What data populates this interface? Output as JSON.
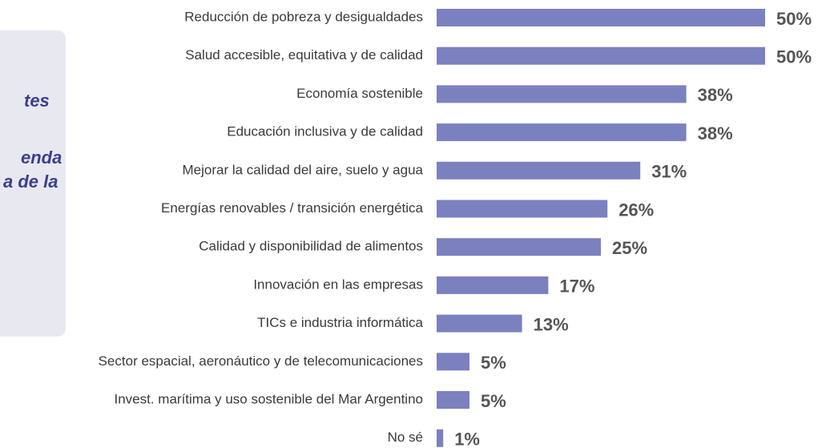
{
  "side_panel": {
    "fragments": [
      "tes",
      "enda",
      "a de la"
    ]
  },
  "chart_data": {
    "type": "bar",
    "orientation": "horizontal",
    "color": "#7b80bf",
    "categories": [
      "Reducción de pobreza y desigualdades",
      "Salud accesible, equitativa y de calidad",
      "Economía sostenible",
      "Educación inclusiva y de calidad",
      "Mejorar la calidad del aire, suelo y agua",
      "Energías renovables / transición energética",
      "Calidad y disponibilidad de alimentos",
      "Innovación en las empresas",
      "TICs e industria informática",
      "Sector espacial, aeronáutico y de telecomunicaciones",
      "Invest. marítima y uso sostenible del Mar Argentino",
      "No sé"
    ],
    "values": [
      50,
      50,
      38,
      38,
      31,
      26,
      25,
      17,
      13,
      5,
      5,
      1
    ],
    "value_labels": [
      "50%",
      "50%",
      "38%",
      "38%",
      "31%",
      "26%",
      "25%",
      "17%",
      "13%",
      "5%",
      "5%",
      "1%"
    ]
  }
}
